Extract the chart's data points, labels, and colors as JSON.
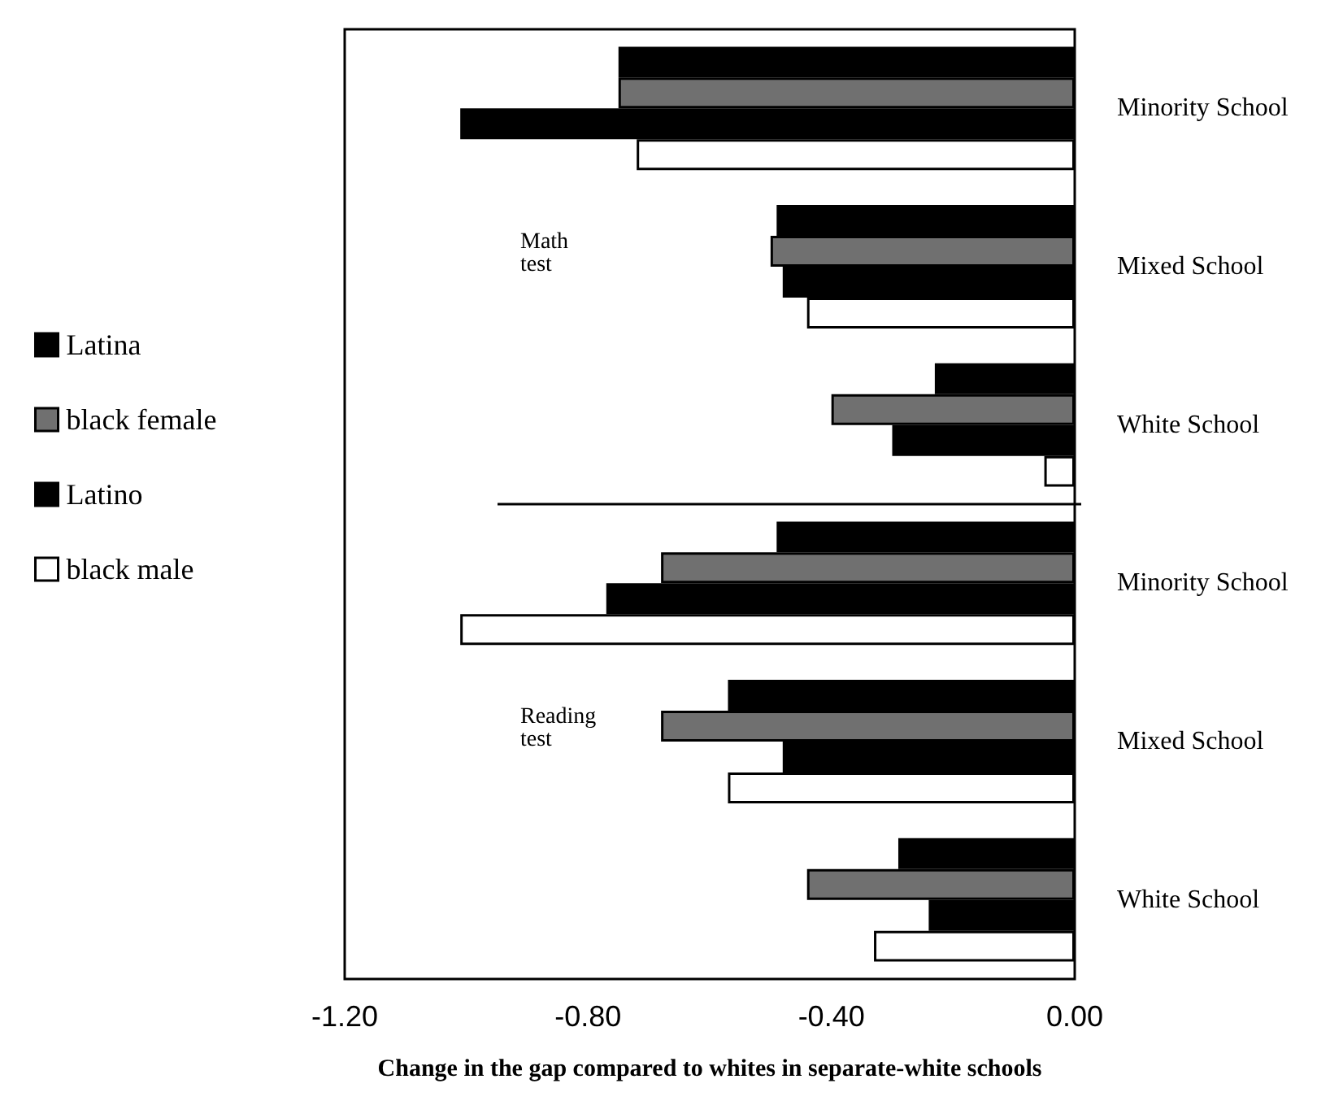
{
  "chart_data": {
    "type": "bar",
    "orientation": "horizontal",
    "xlabel": "Change in the gap compared to whites in separate-white schools",
    "categories": [
      "Minority School",
      "Mixed School",
      "White School",
      "Minority School",
      "Mixed School",
      "White School"
    ],
    "series": [
      {
        "name": "Latina",
        "color": "#000000",
        "values": [
          -0.75,
          -0.49,
          -0.23,
          -0.49,
          -0.57,
          -0.29
        ]
      },
      {
        "name": "black female",
        "color": "#707070",
        "values": [
          -0.75,
          -0.5,
          -0.4,
          -0.68,
          -0.68,
          -0.44
        ]
      },
      {
        "name": "Latino",
        "color": "#000000",
        "values": [
          -1.01,
          -0.48,
          -0.3,
          -0.77,
          -0.48,
          -0.24
        ]
      },
      {
        "name": "black male",
        "color": "#ffffff",
        "values": [
          -0.72,
          -0.44,
          -0.05,
          -1.01,
          -0.57,
          -0.33
        ]
      }
    ],
    "xlim": [
      -1.2,
      0
    ],
    "xticks": [
      {
        "value": -1.2,
        "label": "-1.20"
      },
      {
        "value": -0.8,
        "label": "-0.80"
      },
      {
        "value": -0.4,
        "label": "-0.40"
      },
      {
        "value": 0,
        "label": "0.00"
      }
    ],
    "legend": "left",
    "annotations": [
      "Math\ntest",
      "Reading\ntest"
    ]
  }
}
